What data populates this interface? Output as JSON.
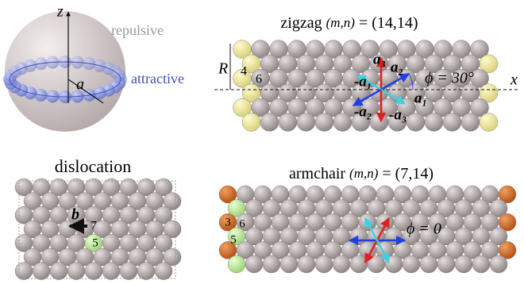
{
  "sphere": {
    "z": "z",
    "repulsive": "repulsive",
    "a": "a",
    "attractive": "attractive"
  },
  "zigzag": {
    "label": "zigzag",
    "indices": "(m,n)",
    "value": "= (14,14)",
    "R": "R",
    "ring4": "4",
    "ring6": "6",
    "x": "x",
    "vectors": [
      "a₃",
      "a₂",
      "-a₁",
      "a₁",
      "-a₂",
      "-a₃"
    ],
    "angle": "ϕ = 30°"
  },
  "dislocation": {
    "title": "dislocation",
    "b": "b",
    "ring7": "7",
    "ring5": "5"
  },
  "armchair": {
    "label": "armchair",
    "indices": "(m,n)",
    "value": "= (7,14)",
    "ring3": "3",
    "ring6": "6",
    "ring5": "5",
    "angle": "ϕ = 0"
  }
}
